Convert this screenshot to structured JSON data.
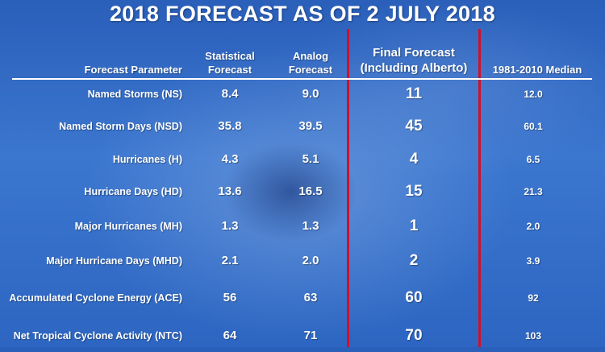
{
  "title": "2018 FORECAST AS OF 2 JULY 2018",
  "headers": {
    "parameter": "Forecast Parameter",
    "statistical_line1": "Statistical",
    "statistical_line2": "Forecast",
    "analog_line1": "Analog",
    "analog_line2": "Forecast",
    "final_line1": "Final Forecast",
    "final_line2": "(Including Alberto)",
    "median": "1981-2010 Median"
  },
  "rows": [
    {
      "parameter": "Named Storms (NS)",
      "statistical": "8.4",
      "analog": "9.0",
      "final": "11",
      "median": "12.0"
    },
    {
      "parameter": "Named Storm Days (NSD)",
      "statistical": "35.8",
      "analog": "39.5",
      "final": "45",
      "median": "60.1"
    },
    {
      "parameter": "Hurricanes (H)",
      "statistical": "4.3",
      "analog": "5.1",
      "final": "4",
      "median": "6.5"
    },
    {
      "parameter": "Hurricane Days (HD)",
      "statistical": "13.6",
      "analog": "16.5",
      "final": "15",
      "median": "21.3"
    },
    {
      "parameter": "Major Hurricanes (MH)",
      "statistical": "1.3",
      "analog": "1.3",
      "final": "1",
      "median": "2.0"
    },
    {
      "parameter": "Major Hurricane Days (MHD)",
      "statistical": "2.1",
      "analog": "2.0",
      "final": "2",
      "median": "3.9"
    },
    {
      "parameter": "Accumulated Cyclone Energy (ACE)",
      "statistical": "56",
      "analog": "63",
      "final": "60",
      "median": "92"
    },
    {
      "parameter": "Net Tropical Cyclone Activity (NTC)",
      "statistical": "64",
      "analog": "71",
      "final": "70",
      "median": "103"
    }
  ],
  "colors": {
    "divider_red": "#d0102a",
    "background_blue": "#3b76cf",
    "text": "#ffffff"
  }
}
